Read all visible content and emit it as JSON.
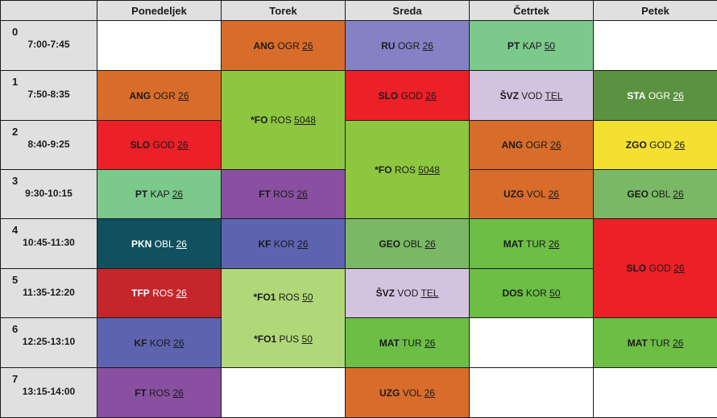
{
  "days": [
    "Ponedeljek",
    "Torek",
    "Sreda",
    "Četrtek",
    "Petek"
  ],
  "periods": [
    {
      "num": "0",
      "time": "7:00-7:45"
    },
    {
      "num": "1",
      "time": "7:50-8:35"
    },
    {
      "num": "2",
      "time": "8:40-9:25"
    },
    {
      "num": "3",
      "time": "9:30-10:15"
    },
    {
      "num": "4",
      "time": "10:45-11:30"
    },
    {
      "num": "5",
      "time": "11:35-12:20"
    },
    {
      "num": "6",
      "time": "12:25-13:10"
    },
    {
      "num": "7",
      "time": "13:15-14:00"
    }
  ],
  "lessons": [
    {
      "day": 1,
      "period": 0,
      "span": 1,
      "color": "#d86d2b",
      "text": "dark",
      "lines": [
        {
          "subject": "ANG",
          "teacher": "OGR",
          "room": "26"
        }
      ]
    },
    {
      "day": 2,
      "period": 0,
      "span": 1,
      "color": "#8482c4",
      "text": "dark",
      "lines": [
        {
          "subject": "RU",
          "teacher": "OGR",
          "room": "26"
        }
      ]
    },
    {
      "day": 3,
      "period": 0,
      "span": 1,
      "color": "#7cc98c",
      "text": "dark",
      "lines": [
        {
          "subject": "PT",
          "teacher": "KAP",
          "room": "50"
        }
      ]
    },
    {
      "day": 0,
      "period": 1,
      "span": 1,
      "color": "#d86d2b",
      "text": "dark",
      "lines": [
        {
          "subject": "ANG",
          "teacher": "OGR",
          "room": "26"
        }
      ]
    },
    {
      "day": 1,
      "period": 1,
      "span": 2,
      "color": "#8dc63f",
      "text": "dark",
      "lines": [
        {
          "subject": "*FO",
          "teacher": "ROS",
          "room": "5048"
        }
      ]
    },
    {
      "day": 2,
      "period": 1,
      "span": 1,
      "color": "#ec2027",
      "text": "dark",
      "lines": [
        {
          "subject": "SLO",
          "teacher": "GOD",
          "room": "26"
        }
      ]
    },
    {
      "day": 3,
      "period": 1,
      "span": 1,
      "color": "#d4c3df",
      "text": "dark",
      "lines": [
        {
          "subject": "ŠVZ",
          "teacher": "VOD",
          "room": "TEL"
        }
      ]
    },
    {
      "day": 4,
      "period": 1,
      "span": 1,
      "color": "#5a923f",
      "text": "light",
      "lines": [
        {
          "subject": "STA",
          "teacher": "OGR",
          "room": "26"
        }
      ]
    },
    {
      "day": 0,
      "period": 2,
      "span": 1,
      "color": "#ec2027",
      "text": "dark",
      "lines": [
        {
          "subject": "SLO",
          "teacher": "GOD",
          "room": "26"
        }
      ]
    },
    {
      "day": 2,
      "period": 2,
      "span": 2,
      "color": "#8dc63f",
      "text": "dark",
      "lines": [
        {
          "subject": "*FO",
          "teacher": "ROS",
          "room": "5048"
        }
      ]
    },
    {
      "day": 3,
      "period": 2,
      "span": 1,
      "color": "#d86d2b",
      "text": "dark",
      "lines": [
        {
          "subject": "ANG",
          "teacher": "OGR",
          "room": "26"
        }
      ]
    },
    {
      "day": 4,
      "period": 2,
      "span": 1,
      "color": "#f4e031",
      "text": "dark",
      "lines": [
        {
          "subject": "ZGO",
          "teacher": "GOD",
          "room": "26"
        }
      ]
    },
    {
      "day": 0,
      "period": 3,
      "span": 1,
      "color": "#7cc98c",
      "text": "dark",
      "lines": [
        {
          "subject": "PT",
          "teacher": "KAP",
          "room": "26"
        }
      ]
    },
    {
      "day": 1,
      "period": 3,
      "span": 1,
      "color": "#8950a1",
      "text": "dark",
      "lines": [
        {
          "subject": "FT",
          "teacher": "ROS",
          "room": "26"
        }
      ]
    },
    {
      "day": 3,
      "period": 3,
      "span": 1,
      "color": "#d86d2b",
      "text": "dark",
      "lines": [
        {
          "subject": "UZG",
          "teacher": "VOL",
          "room": "26"
        }
      ]
    },
    {
      "day": 4,
      "period": 3,
      "span": 1,
      "color": "#7ab865",
      "text": "dark",
      "lines": [
        {
          "subject": "GEO",
          "teacher": "OBL",
          "room": "26"
        }
      ]
    },
    {
      "day": 0,
      "period": 4,
      "span": 1,
      "color": "#10505f",
      "text": "light",
      "lines": [
        {
          "subject": "PKN",
          "teacher": "OBL",
          "room": "26"
        }
      ]
    },
    {
      "day": 1,
      "period": 4,
      "span": 1,
      "color": "#5e63b0",
      "text": "dark",
      "lines": [
        {
          "subject": "KF",
          "teacher": "KOR",
          "room": "26"
        }
      ]
    },
    {
      "day": 2,
      "period": 4,
      "span": 1,
      "color": "#7ab865",
      "text": "dark",
      "lines": [
        {
          "subject": "GEO",
          "teacher": "OBL",
          "room": "26"
        }
      ]
    },
    {
      "day": 3,
      "period": 4,
      "span": 1,
      "color": "#6cbe45",
      "text": "dark",
      "lines": [
        {
          "subject": "MAT",
          "teacher": "TUR",
          "room": "26"
        }
      ]
    },
    {
      "day": 4,
      "period": 4,
      "span": 2,
      "color": "#ec2027",
      "text": "dark",
      "lines": [
        {
          "subject": "SLO",
          "teacher": "GOD",
          "room": "26"
        }
      ]
    },
    {
      "day": 0,
      "period": 5,
      "span": 1,
      "color": "#c4262a",
      "text": "light",
      "lines": [
        {
          "subject": "TFP",
          "teacher": "ROS",
          "room": "26"
        }
      ]
    },
    {
      "day": 1,
      "period": 5,
      "span": 2,
      "color": "#b0d878",
      "text": "dark",
      "lines": [
        {
          "subject": "*FO1",
          "teacher": "ROS",
          "room": "50"
        },
        {
          "subject": "*FO1",
          "teacher": "PUS",
          "room": "50"
        }
      ]
    },
    {
      "day": 2,
      "period": 5,
      "span": 1,
      "color": "#d4c3df",
      "text": "dark",
      "lines": [
        {
          "subject": "ŠVZ",
          "teacher": "VOD",
          "room": "TEL"
        }
      ]
    },
    {
      "day": 3,
      "period": 5,
      "span": 1,
      "color": "#6cbe45",
      "text": "dark",
      "lines": [
        {
          "subject": "DOS",
          "teacher": "KOR",
          "room": "50"
        }
      ]
    },
    {
      "day": 0,
      "period": 6,
      "span": 1,
      "color": "#5e63b0",
      "text": "dark",
      "lines": [
        {
          "subject": "KF",
          "teacher": "KOR",
          "room": "26"
        }
      ]
    },
    {
      "day": 2,
      "period": 6,
      "span": 1,
      "color": "#6cbe45",
      "text": "dark",
      "lines": [
        {
          "subject": "MAT",
          "teacher": "TUR",
          "room": "26"
        }
      ]
    },
    {
      "day": 4,
      "period": 6,
      "span": 1,
      "color": "#6cbe45",
      "text": "dark",
      "lines": [
        {
          "subject": "MAT",
          "teacher": "TUR",
          "room": "26"
        }
      ]
    },
    {
      "day": 0,
      "period": 7,
      "span": 1,
      "color": "#8950a1",
      "text": "dark",
      "lines": [
        {
          "subject": "FT",
          "teacher": "ROS",
          "room": "26"
        }
      ]
    },
    {
      "day": 2,
      "period": 7,
      "span": 1,
      "color": "#d86d2b",
      "text": "dark",
      "lines": [
        {
          "subject": "UZG",
          "teacher": "VOL",
          "room": "26"
        }
      ]
    }
  ]
}
